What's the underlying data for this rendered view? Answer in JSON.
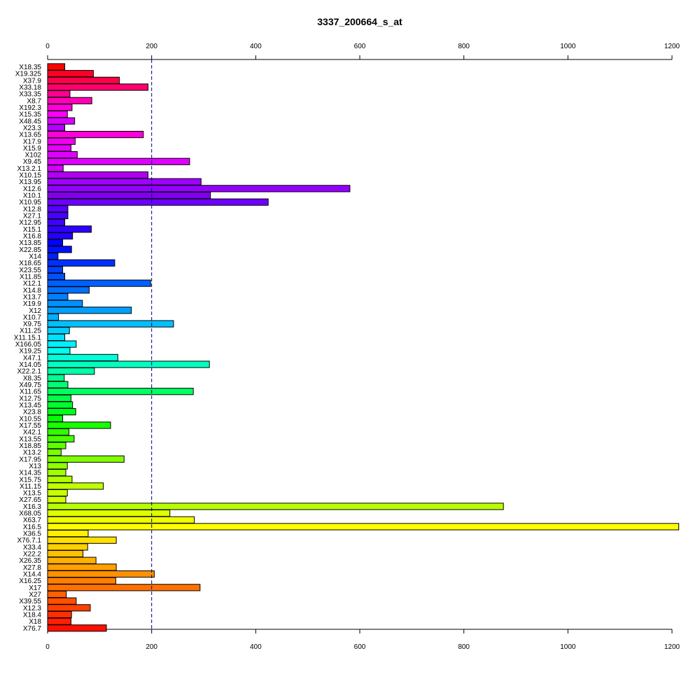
{
  "chart_data": {
    "type": "bar",
    "orientation": "horizontal",
    "title": "3337_200664_s_at",
    "xlim": [
      0,
      1200
    ],
    "x_ticks": [
      0,
      200,
      400,
      600,
      800,
      1000,
      1200
    ],
    "x_tick_labels": [
      "0",
      "200",
      "400",
      "600",
      "800",
      "1000",
      "1200"
    ],
    "reference_line": 200,
    "axes_positions": [
      "top",
      "bottom"
    ],
    "color_scheme": "rainbow",
    "categories": [
      "X18.35",
      "X19.325",
      "X37.9",
      "X33.18",
      "X33.35",
      "X8.7",
      "X192.3",
      "X15.35",
      "X48.45",
      "X23.3",
      "X13.65",
      "X17.9",
      "X15.9",
      "X102",
      "X9.45",
      "X13.2.1",
      "X10.15",
      "X13.95",
      "X12.6",
      "X10.1",
      "X10.95",
      "X12.8",
      "X27.1",
      "X12.95",
      "X15.1",
      "X16.8",
      "X13.85",
      "X22.85",
      "X14",
      "X18.65",
      "X23.55",
      "X11.85",
      "X12.1",
      "X14.8",
      "X13.7",
      "X19.9",
      "X12",
      "X10.7",
      "X9.75",
      "X11.25",
      "X11.15.1",
      "X166.05",
      "X19.25",
      "X47.1",
      "X14.05",
      "X22.2.1",
      "X8.35",
      "X49.75",
      "X11.65",
      "X12.75",
      "X13.45",
      "X23.8",
      "X10.55",
      "X17.55",
      "X42.1",
      "X13.55",
      "X18.85",
      "X13.2",
      "X17.95",
      "X13",
      "X14.35",
      "X15.75",
      "X11.15",
      "X13.5",
      "X27.65",
      "X16.3",
      "X68.05",
      "X63.7",
      "X16.5",
      "X36.5",
      "X76.7.1",
      "X33.4",
      "X22.2",
      "X26.35",
      "X27.8",
      "X14.4",
      "X16.25",
      "X17",
      "X27",
      "X39.55",
      "X12.3",
      "X18.4",
      "X18",
      "X76.7"
    ],
    "values": [
      33,
      88,
      138,
      193,
      43,
      85,
      47,
      38,
      52,
      33,
      184,
      53,
      45,
      57,
      273,
      30,
      193,
      295,
      581,
      313,
      424,
      39,
      39,
      33,
      84,
      48,
      29,
      46,
      20,
      129,
      29,
      33,
      198,
      80,
      39,
      67,
      161,
      21,
      242,
      42,
      33,
      55,
      43,
      135,
      311,
      90,
      32,
      39,
      280,
      45,
      48,
      54,
      29,
      121,
      41,
      51,
      35,
      26,
      147,
      38,
      35,
      47,
      107,
      38,
      35,
      876,
      235,
      282,
      1213,
      78,
      132,
      77,
      68,
      93,
      132,
      205,
      131,
      293,
      36,
      55,
      82,
      46,
      45,
      113
    ],
    "colors": [
      "#FF0000",
      "#FF0024",
      "#FF0048",
      "#FF006D",
      "#FF0091",
      "#FF00B6",
      "#FF00DA",
      "#FF00FF",
      "#DA00FF",
      "#B600FF",
      "#FF00DA",
      "#F000F0",
      "#E600FF",
      "#E000FF",
      "#E000FF",
      "#D400FF",
      "#B000F0",
      "#A000FF",
      "#9400FF",
      "#8000E8",
      "#6D00FF",
      "#5A00FF",
      "#4800FF",
      "#4000FF",
      "#3000FF",
      "#2400FF",
      "#0000FF",
      "#0010FF",
      "#0020FF",
      "#0030FF",
      "#0040FF",
      "#0050FF",
      "#0060FF",
      "#0070FF",
      "#0080FF",
      "#0090FF",
      "#00A0FF",
      "#00B0FF",
      "#00C0FF",
      "#00D0FF",
      "#00E0FF",
      "#00F0FF",
      "#00FFF0",
      "#00FFD8",
      "#00FFC0",
      "#00FFA8",
      "#00FF90",
      "#00FF78",
      "#00FF60",
      "#00FF48",
      "#00FF30",
      "#00FF18",
      "#00FF00",
      "#18FF00",
      "#30FF00",
      "#48FF00",
      "#60FF00",
      "#78FF00",
      "#80FF00",
      "#90FF00",
      "#A0FF00",
      "#B0FF00",
      "#C0FF00",
      "#C8FF00",
      "#D0FF00",
      "#B8FF00",
      "#E0FF00",
      "#F0FF00",
      "#FFFF00",
      "#FFF000",
      "#FFE000",
      "#FFD000",
      "#FFC000",
      "#FFB000",
      "#FFA000",
      "#FF9000",
      "#FF8000",
      "#FF7000",
      "#FF6000",
      "#FF5000",
      "#FF4000",
      "#FF3000",
      "#FF2000",
      "#FF1000"
    ]
  }
}
